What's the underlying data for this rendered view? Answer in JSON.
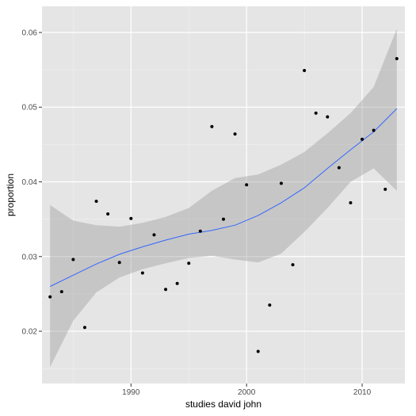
{
  "chart_data": {
    "type": "scatter",
    "title": "",
    "xlabel": "studies david john",
    "ylabel": "proportion",
    "xlim": [
      1982.3,
      2013.7
    ],
    "ylim": [
      0.013,
      0.0635
    ],
    "x_ticks": [
      1990,
      2000,
      2010
    ],
    "y_ticks": [
      0.02,
      0.03,
      0.04,
      0.05,
      0.06
    ],
    "x_tick_labels": [
      "1990",
      "2000",
      "2010"
    ],
    "y_tick_labels": [
      "0.02",
      "0.03",
      "0.04",
      "0.05",
      "0.06"
    ],
    "grid": true,
    "legend": "none",
    "colors": {
      "panel_background": "#e5e5e5",
      "grid_major": "#ffffff",
      "grid_minor": "#f2f2f2",
      "points": "#000000",
      "smooth_line": "#3366ff",
      "confidence_band": "#999999"
    },
    "points": [
      {
        "x": 1983,
        "y": 0.0246
      },
      {
        "x": 1984,
        "y": 0.0253
      },
      {
        "x": 1985,
        "y": 0.0296
      },
      {
        "x": 1986,
        "y": 0.0205
      },
      {
        "x": 1987,
        "y": 0.0374
      },
      {
        "x": 1988,
        "y": 0.0357
      },
      {
        "x": 1989,
        "y": 0.0292
      },
      {
        "x": 1990,
        "y": 0.0351
      },
      {
        "x": 1991,
        "y": 0.0278
      },
      {
        "x": 1992,
        "y": 0.0329
      },
      {
        "x": 1993,
        "y": 0.0256
      },
      {
        "x": 1994,
        "y": 0.0264
      },
      {
        "x": 1995,
        "y": 0.0291
      },
      {
        "x": 1996,
        "y": 0.0334
      },
      {
        "x": 1997,
        "y": 0.0474
      },
      {
        "x": 1998,
        "y": 0.035
      },
      {
        "x": 1999,
        "y": 0.0464
      },
      {
        "x": 2000,
        "y": 0.0396
      },
      {
        "x": 2001,
        "y": 0.0173
      },
      {
        "x": 2002,
        "y": 0.0235
      },
      {
        "x": 2003,
        "y": 0.0398
      },
      {
        "x": 2004,
        "y": 0.0289
      },
      {
        "x": 2005,
        "y": 0.0549
      },
      {
        "x": 2006,
        "y": 0.0492
      },
      {
        "x": 2007,
        "y": 0.0487
      },
      {
        "x": 2008,
        "y": 0.0419
      },
      {
        "x": 2009,
        "y": 0.0372
      },
      {
        "x": 2010,
        "y": 0.0457
      },
      {
        "x": 2011,
        "y": 0.0469
      },
      {
        "x": 2012,
        "y": 0.039
      },
      {
        "x": 2013,
        "y": 0.0565
      }
    ],
    "smooth": {
      "method": "loess",
      "x": [
        1983,
        1985,
        1987,
        1989,
        1991,
        1993,
        1995,
        1997,
        1999,
        2001,
        2003,
        2005,
        2007,
        2009,
        2011,
        2013
      ],
      "y": [
        0.026,
        0.0275,
        0.029,
        0.0303,
        0.0313,
        0.0322,
        0.033,
        0.0335,
        0.0342,
        0.0355,
        0.0372,
        0.0392,
        0.0418,
        0.0443,
        0.0467,
        0.0498
      ],
      "lower": [
        0.0152,
        0.0214,
        0.0252,
        0.0272,
        0.0283,
        0.0291,
        0.0298,
        0.0301,
        0.0296,
        0.0292,
        0.0304,
        0.0333,
        0.0365,
        0.04,
        0.0418,
        0.0388
      ],
      "upper": [
        0.0369,
        0.0348,
        0.0342,
        0.034,
        0.0345,
        0.0353,
        0.0365,
        0.0388,
        0.0405,
        0.041,
        0.0423,
        0.044,
        0.0465,
        0.0492,
        0.0527,
        0.0605
      ]
    }
  }
}
